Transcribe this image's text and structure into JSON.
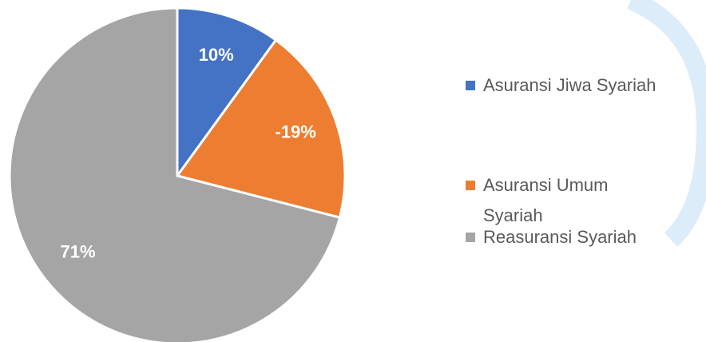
{
  "chart_data": {
    "type": "pie",
    "categories": [
      "Asuransi Jiwa Syariah",
      "Asuransi Umum Syariah",
      "Reasuransi Syariah"
    ],
    "values": [
      10,
      -19,
      71
    ],
    "value_labels": [
      "10%",
      "-19%",
      "71%"
    ],
    "colors": [
      "#4472c4",
      "#ed7d31",
      "#a5a5a5"
    ],
    "legend": "right"
  }
}
